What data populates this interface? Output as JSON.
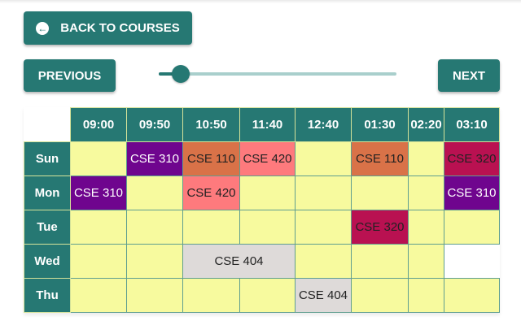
{
  "buttons": {
    "back": "BACK TO COURSES",
    "previous": "PREVIOUS",
    "next": "NEXT"
  },
  "icons": {
    "back": "arrow-left-circle-icon"
  },
  "slider": {
    "value_percent": 10
  },
  "colors": {
    "primary": "#267873",
    "empty_cell": "#f7fa9e",
    "CSE 310": "#6f058e",
    "CSE 110": "#d97248",
    "CSE 420": "#fe7a7d",
    "CSE 320": "#b91151",
    "CSE 404": "#dedad9"
  },
  "timetable": {
    "times": [
      "09:00",
      "09:50",
      "10:50",
      "11:40",
      "12:40",
      "01:30",
      "02:20",
      "03:10"
    ],
    "rows": [
      {
        "day": "Sun",
        "cells": [
          {
            "text": ""
          },
          {
            "text": "CSE 310"
          },
          {
            "text": "CSE 110"
          },
          {
            "text": "CSE 420"
          },
          {
            "text": ""
          },
          {
            "text": "CSE 110"
          },
          {
            "text": ""
          },
          {
            "text": "CSE 320"
          }
        ]
      },
      {
        "day": "Mon",
        "cells": [
          {
            "text": "CSE 310"
          },
          {
            "text": ""
          },
          {
            "text": "CSE 420"
          },
          {
            "text": ""
          },
          {
            "text": ""
          },
          {
            "text": ""
          },
          {
            "text": ""
          },
          {
            "text": "CSE 310"
          }
        ]
      },
      {
        "day": "Tue",
        "cells": [
          {
            "text": ""
          },
          {
            "text": ""
          },
          {
            "text": ""
          },
          {
            "text": ""
          },
          {
            "text": ""
          },
          {
            "text": "CSE 320"
          },
          {
            "text": ""
          },
          {
            "text": ""
          }
        ]
      },
      {
        "day": "Wed",
        "cells": [
          {
            "text": ""
          },
          {
            "text": ""
          },
          {
            "text": "CSE 404",
            "span": 2
          },
          {
            "text": ""
          },
          {
            "text": ""
          },
          {
            "text": ""
          }
        ]
      },
      {
        "day": "Thu",
        "cells": [
          {
            "text": ""
          },
          {
            "text": ""
          },
          {
            "text": ""
          },
          {
            "text": ""
          },
          {
            "text": "CSE 404"
          },
          {
            "text": ""
          },
          {
            "text": ""
          },
          {
            "text": ""
          }
        ]
      }
    ]
  }
}
